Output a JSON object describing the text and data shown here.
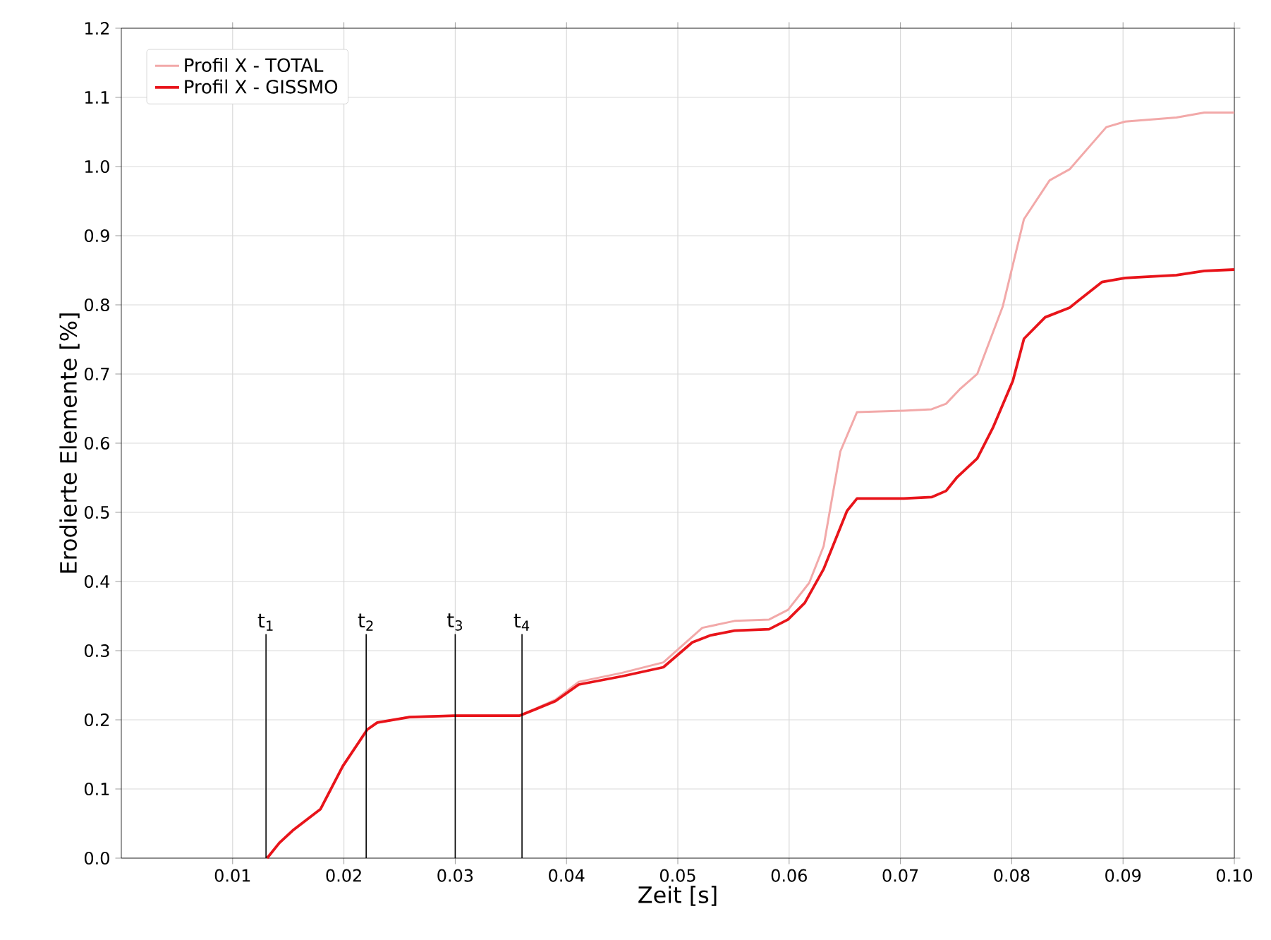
{
  "chart_data": {
    "type": "line",
    "xlabel": "Zeit [s]",
    "ylabel": "Erodierte Elemente [%]",
    "xlim": [
      0,
      0.1
    ],
    "ylim": [
      0,
      1.2
    ],
    "xticks": [
      0.01,
      0.02,
      0.03,
      0.04,
      0.05,
      0.06,
      0.07,
      0.08,
      0.09,
      {
        "value": 0.1,
        "label": "0.10"
      }
    ],
    "yticks": [
      {
        "value": 0,
        "label": "0.0"
      },
      0.1,
      0.2,
      0.3,
      0.4,
      0.5,
      0.6,
      0.7,
      0.8,
      0.9,
      {
        "value": 1.0,
        "label": "1.0"
      },
      1.1,
      1.2
    ],
    "grid": true,
    "legend": "top left",
    "marker": "none",
    "line_style": "solid",
    "series": [
      {
        "name": "Profil X - TOTAL",
        "color": "#f2a9a9",
        "x": [
          0.0131,
          0.0142,
          0.0154,
          0.0179,
          0.0199,
          0.0221,
          0.023,
          0.0259,
          0.03,
          0.0358,
          0.039,
          0.0411,
          0.045,
          0.0487,
          0.0522,
          0.0551,
          0.0582,
          0.0599,
          0.0618,
          0.0631,
          0.0637,
          0.0646,
          0.0661,
          0.0703,
          0.0728,
          0.0741,
          0.0754,
          0.0769,
          0.0792,
          0.0811,
          0.0834,
          0.0852,
          0.0885,
          0.0902,
          0.0948,
          0.0973,
          0.1
        ],
        "values": [
          0,
          0.022,
          0.04,
          0.071,
          0.133,
          0.186,
          0.196,
          0.204,
          0.206,
          0.206,
          0.229,
          0.255,
          0.268,
          0.283,
          0.333,
          0.343,
          0.345,
          0.359,
          0.398,
          0.451,
          0.506,
          0.588,
          0.645,
          0.647,
          0.649,
          0.657,
          0.679,
          0.7,
          0.798,
          0.924,
          0.98,
          0.996,
          1.057,
          1.065,
          1.071,
          1.078,
          1.078
        ]
      },
      {
        "name": "Profil X - GISSMO",
        "color": "#e8141a",
        "x": [
          0.0131,
          0.0142,
          0.0154,
          0.0179,
          0.0199,
          0.0221,
          0.023,
          0.0259,
          0.03,
          0.0358,
          0.039,
          0.0411,
          0.045,
          0.0487,
          0.0513,
          0.0529,
          0.0551,
          0.0582,
          0.0599,
          0.0614,
          0.0631,
          0.0652,
          0.0661,
          0.0703,
          0.0728,
          0.0741,
          0.0751,
          0.0769,
          0.0783,
          0.0801,
          0.0811,
          0.083,
          0.0852,
          0.0881,
          0.0902,
          0.0948,
          0.0973,
          0.1
        ],
        "values": [
          0,
          0.022,
          0.04,
          0.071,
          0.133,
          0.186,
          0.196,
          0.204,
          0.206,
          0.206,
          0.227,
          0.251,
          0.263,
          0.276,
          0.312,
          0.322,
          0.329,
          0.331,
          0.345,
          0.369,
          0.418,
          0.502,
          0.52,
          0.52,
          0.522,
          0.531,
          0.551,
          0.578,
          0.622,
          0.69,
          0.751,
          0.782,
          0.796,
          0.833,
          0.839,
          0.843,
          0.849,
          0.851
        ]
      }
    ],
    "ref_lines": [
      {
        "axis": "x",
        "value": 0.013,
        "label": "t$_{1}$"
      },
      {
        "axis": "x",
        "value": 0.022,
        "label": "t$_{2}$"
      },
      {
        "axis": "x",
        "value": 0.03,
        "label": "t$_{3}$"
      },
      {
        "axis": "x",
        "value": 0.036,
        "label": "t$_{4}$"
      }
    ]
  }
}
